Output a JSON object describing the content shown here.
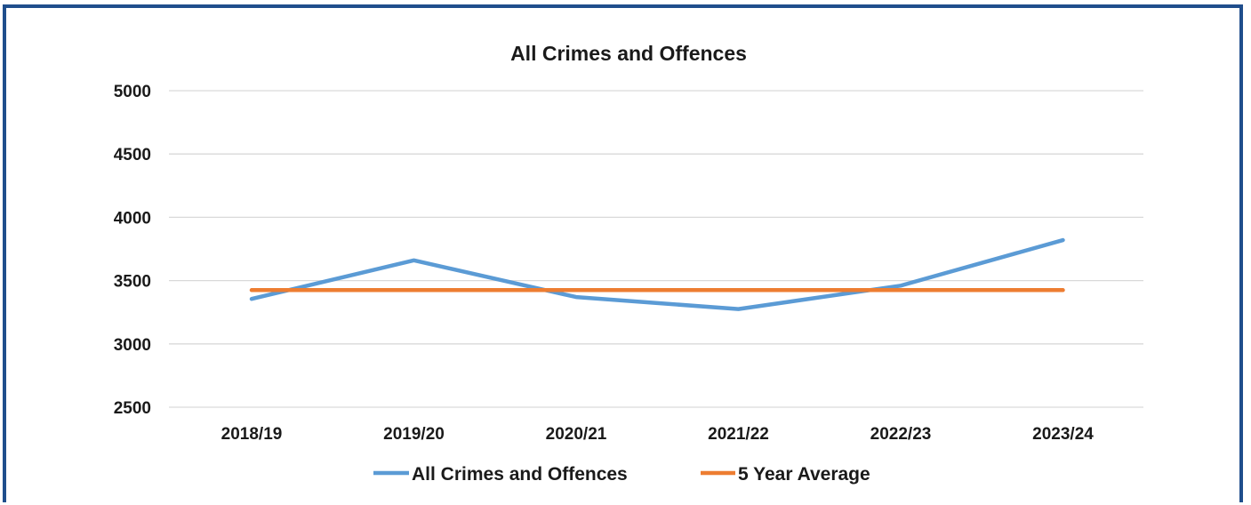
{
  "chart_data": {
    "type": "line",
    "title": "All Crimes and Offences",
    "xlabel": "",
    "ylabel": "",
    "categories": [
      "2018/19",
      "2019/20",
      "2020/21",
      "2021/22",
      "2022/23",
      "2023/24"
    ],
    "ylim": [
      2500,
      5000
    ],
    "yticks": [
      2500,
      3000,
      3500,
      4000,
      4500,
      5000
    ],
    "grid": true,
    "legend_position": "bottom",
    "series": [
      {
        "name": "All Crimes and Offences",
        "color": "#5b9bd5",
        "values": [
          3355,
          3660,
          3370,
          3275,
          3460,
          3820
        ]
      },
      {
        "name": "5 Year Average",
        "color": "#ed7d31",
        "values": [
          3425,
          3425,
          3425,
          3425,
          3425,
          3425
        ]
      }
    ]
  },
  "colors": {
    "frame": "#1f4e8c",
    "grid": "#d9d9d9"
  }
}
